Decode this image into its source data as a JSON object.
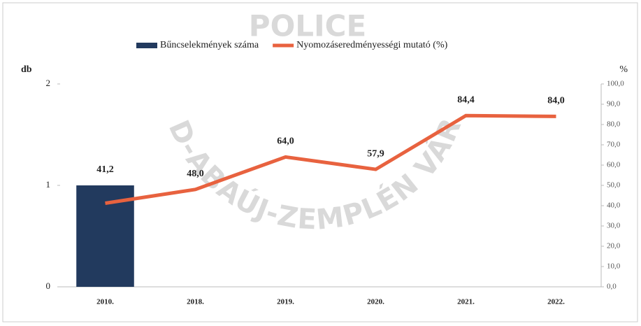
{
  "chart_data": {
    "type": "bar-line",
    "watermark_title": "POLICE",
    "watermark_text": "BORSOD-ABAÚJ-ZEMPLÉN VÁRMEGYE",
    "ylabel": "db",
    "y2label": "%",
    "categories": [
      "2010.",
      "2018.",
      "2019.",
      "2020.",
      "2021.",
      "2022."
    ],
    "series": [
      {
        "name": "Bűncselekmények száma",
        "type": "bar",
        "color": "#223a5e",
        "values": [
          1,
          0,
          0,
          0,
          0,
          0
        ]
      },
      {
        "name": "Nyomozáseredményességi mutató (%)",
        "type": "line",
        "axis": "y2",
        "color": "#e8623f",
        "values": [
          41.2,
          48.0,
          64.0,
          57.9,
          84.4,
          84.0
        ],
        "value_labels": [
          "41,2",
          "48,0",
          "64,0",
          "57,9",
          "84,4",
          "84,0"
        ]
      }
    ],
    "ylim": [
      0,
      2
    ],
    "yticks": [
      0,
      1,
      2
    ],
    "y2lim": [
      0,
      100
    ],
    "y2ticks": [
      {
        "value": 0,
        "label": "0,0"
      },
      {
        "value": 10,
        "label": "10,0"
      },
      {
        "value": 20,
        "label": "20,0"
      },
      {
        "value": 30,
        "label": "30,0"
      },
      {
        "value": 40,
        "label": "40,0"
      },
      {
        "value": 50,
        "label": "50,0"
      },
      {
        "value": 60,
        "label": "60,0"
      },
      {
        "value": 70,
        "label": "70,0"
      },
      {
        "value": 80,
        "label": "80,0"
      },
      {
        "value": 90,
        "label": "90,0"
      },
      {
        "value": 100,
        "label": "100,0"
      }
    ],
    "legend": "top"
  }
}
